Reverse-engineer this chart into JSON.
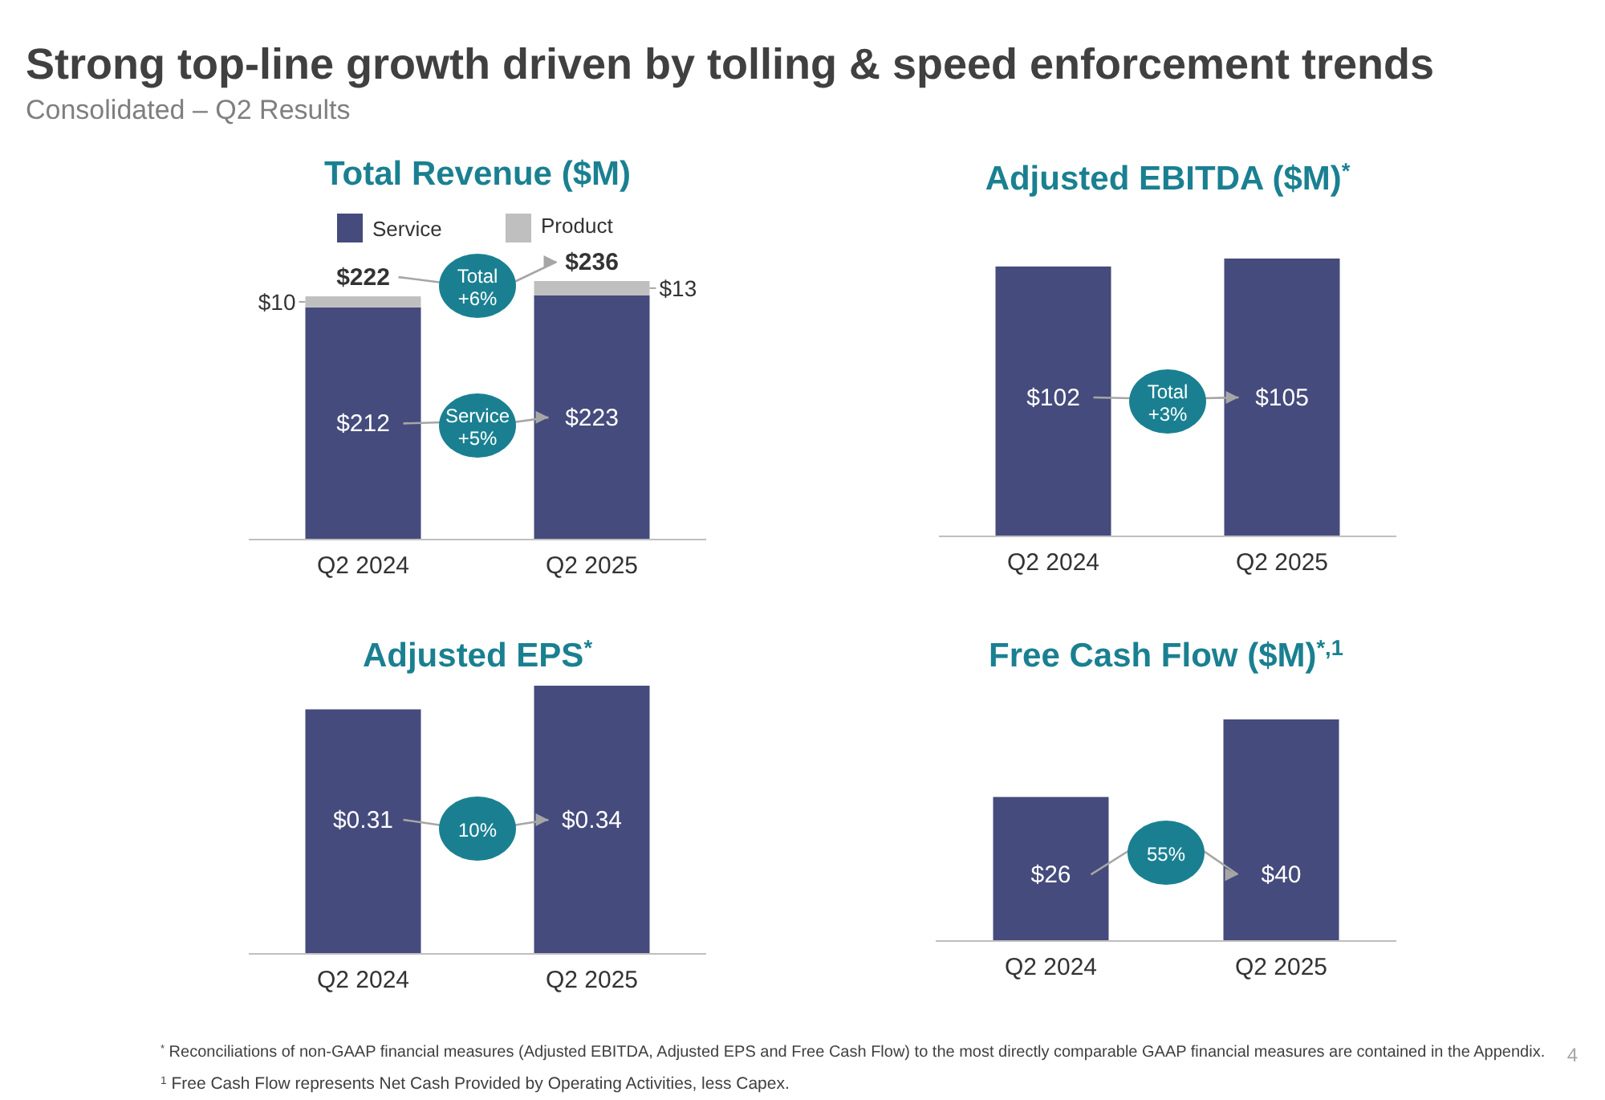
{
  "chart_data": [
    {
      "type": "other",
      "title": "Strong top-line growth driven by tolling & speed enforcement trends",
      "subtitle": "Consolidated – Q2 Results",
      "annotations": [
        "$^{*}$ Reconciliations of non-GAAP financial measures (Adjusted EBITDA, Adjusted EPS and Free Cash Flow) to the most directly comparable GAAP financial measures are contained in the Appendix.",
        "$^{1}$ Free Cash Flow represents Net Cash Provided by Operating Activities, less Capex.",
        "4"
      ]
    },
    {
      "type": "bar",
      "title": "Total Revenue ($M)",
      "categories": [
        "Q2 2024",
        "Q2 2025"
      ],
      "stacked": true,
      "legend": "top",
      "totals": [
        "$222",
        "$236"
      ],
      "annotations": [
        "Total +6%",
        "Service +5%"
      ],
      "series": [
        {
          "name": "Service",
          "color": "#454b7c",
          "values": [
            212,
            223
          ],
          "value_labels": [
            "$212",
            "$223"
          ]
        },
        {
          "name": "Product",
          "color": "#bfbfbf",
          "values": [
            10,
            13
          ],
          "value_labels": [
            "$10",
            "$13"
          ]
        }
      ]
    },
    {
      "type": "bar",
      "title": "Adjusted EBITDA ($M)$^{*}$",
      "categories": [
        "Q2 2024",
        "Q2 2025"
      ],
      "annotations": [
        "Total +3%"
      ],
      "series": [
        {
          "color": "#454b7c",
          "values": [
            102,
            105
          ],
          "value_labels": [
            "$102",
            "$105"
          ]
        }
      ]
    },
    {
      "type": "bar",
      "title": "Adjusted EPS$^{*}$",
      "categories": [
        "Q2 2024",
        "Q2 2025"
      ],
      "annotations": [
        "10%"
      ],
      "series": [
        {
          "color": "#454b7c",
          "values": [
            0.31,
            0.34
          ],
          "value_labels": [
            "$0.31",
            "$0.34"
          ]
        }
      ]
    },
    {
      "type": "bar",
      "title": "Free Cash Flow ($M)$^{*,1}$",
      "categories": [
        "Q2 2024",
        "Q2 2025"
      ],
      "annotations": [
        "55%"
      ],
      "series": [
        {
          "color": "#454b7c",
          "values": [
            26,
            40
          ],
          "value_labels": [
            "$26",
            "$40"
          ]
        }
      ]
    }
  ]
}
